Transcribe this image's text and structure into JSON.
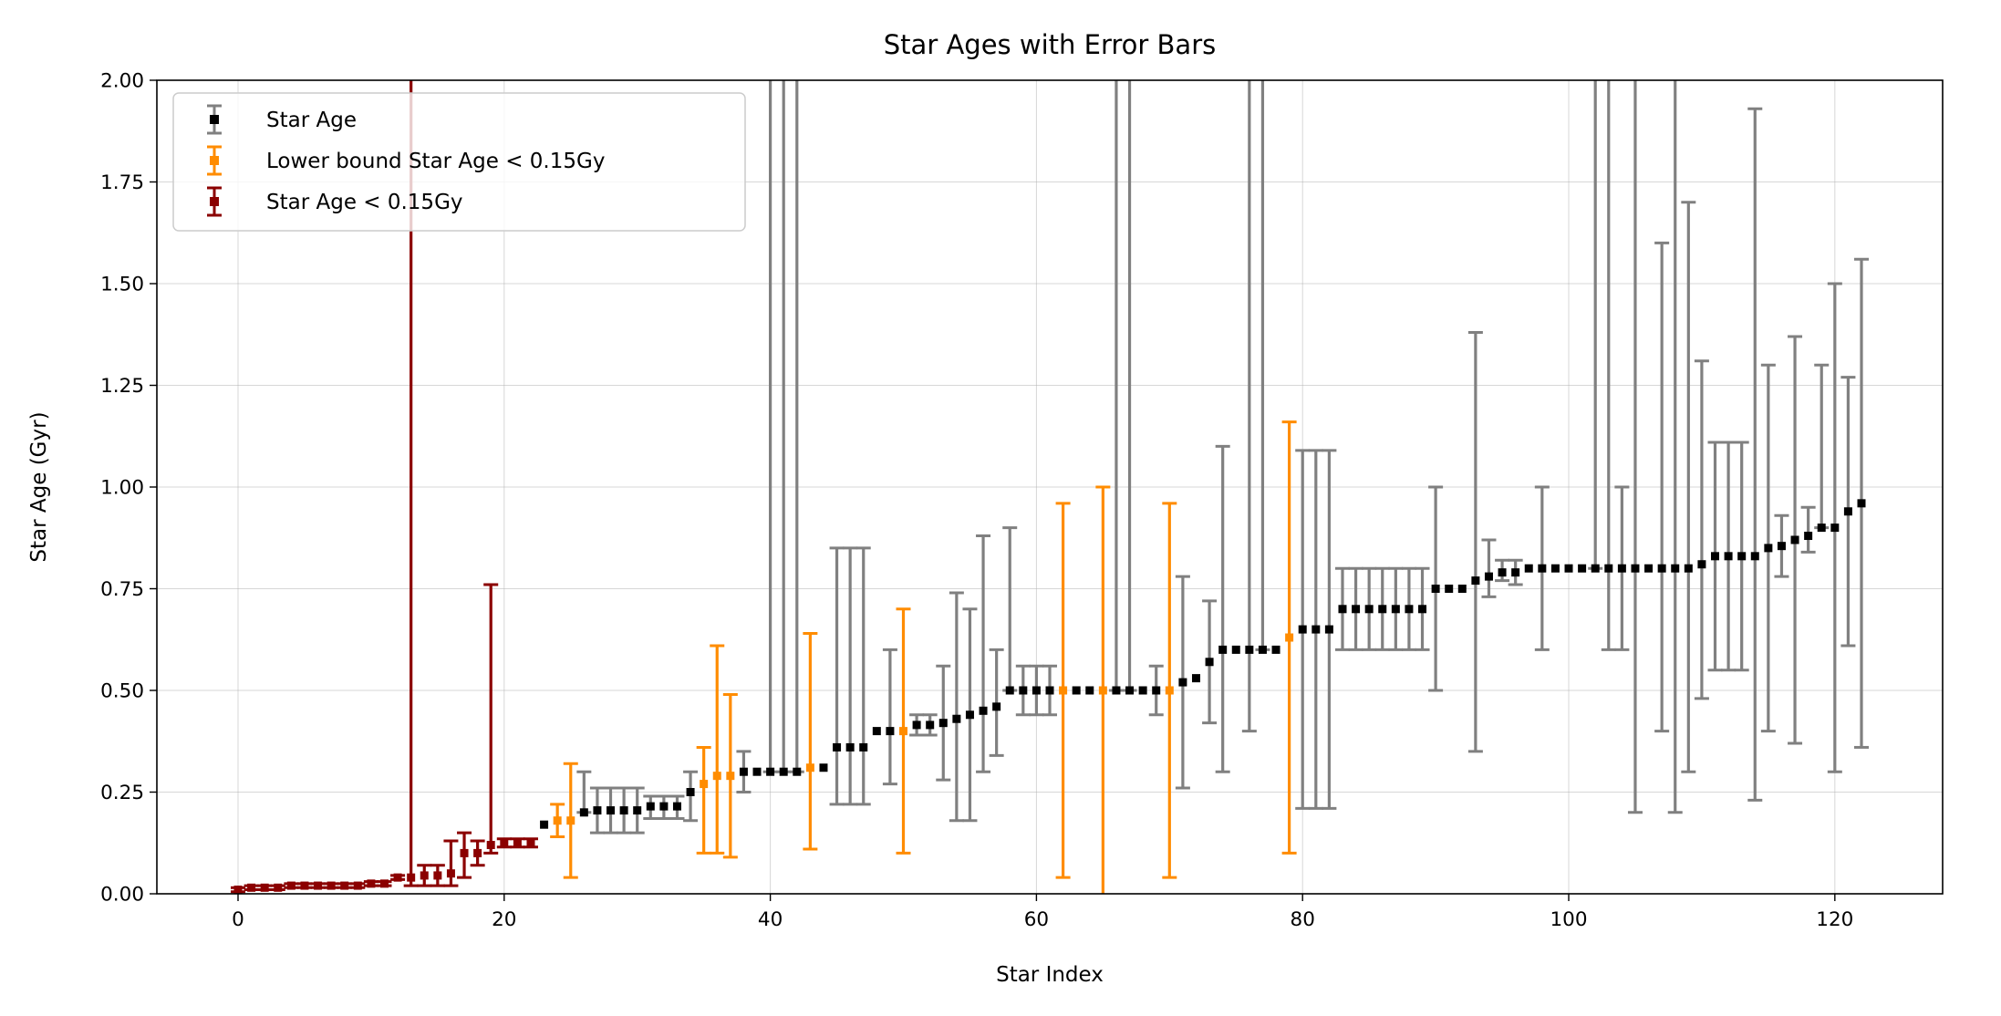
{
  "chart_data": {
    "type": "scatter",
    "title": "Star Ages with Error Bars",
    "xlabel": "Star Index",
    "ylabel": "Star Age (Gyr)",
    "xlim": [
      -6.1,
      128.1
    ],
    "ylim": [
      0,
      2.0
    ],
    "xticks": [
      0,
      20,
      40,
      60,
      80,
      100,
      120
    ],
    "xtick_labels": [
      "0",
      "20",
      "40",
      "60",
      "80",
      "100",
      "120"
    ],
    "yticks": [
      0,
      0.25,
      0.5,
      0.75,
      1.0,
      1.25,
      1.5,
      1.75,
      2.0
    ],
    "ytick_labels": [
      "0.00",
      "0.25",
      "0.50",
      "0.75",
      "1.00",
      "1.25",
      "1.50",
      "1.75",
      "2.00"
    ],
    "grid": true,
    "legend_position": "top-left",
    "colors": {
      "gray": "#808080",
      "orange": "#ff8c00",
      "darkred": "#8b0000",
      "marker": "#000000"
    },
    "series": [
      {
        "name": "Star Age",
        "marker_color": "#000000",
        "errorbar_color": "#808080",
        "x": [
          23,
          26,
          27,
          28,
          29,
          30,
          31,
          32,
          33,
          34,
          38,
          39,
          40,
          41,
          42,
          44,
          45,
          46,
          47,
          48,
          49,
          51,
          52,
          53,
          54,
          55,
          56,
          57,
          58,
          59,
          60,
          61,
          63,
          64,
          66,
          67,
          68,
          69,
          71,
          72,
          73,
          74,
          75,
          76,
          77,
          78,
          80,
          81,
          82,
          83,
          84,
          85,
          86,
          87,
          88,
          89,
          90,
          91,
          92,
          93,
          94,
          95,
          96,
          97,
          98,
          99,
          100,
          101,
          102,
          103,
          104,
          105,
          106,
          107,
          108,
          109,
          110,
          111,
          112,
          113,
          114,
          115,
          116,
          117,
          118,
          119,
          120,
          121,
          122
        ],
        "y": [
          0.17,
          0.2,
          0.205,
          0.205,
          0.205,
          0.205,
          0.215,
          0.215,
          0.215,
          0.25,
          0.3,
          0.3,
          0.3,
          0.3,
          0.3,
          0.31,
          0.36,
          0.36,
          0.36,
          0.4,
          0.4,
          0.415,
          0.415,
          0.42,
          0.43,
          0.44,
          0.45,
          0.46,
          0.5,
          0.5,
          0.5,
          0.5,
          0.5,
          0.5,
          0.5,
          0.5,
          0.5,
          0.5,
          0.52,
          0.53,
          0.57,
          0.6,
          0.6,
          0.6,
          0.6,
          0.6,
          0.65,
          0.65,
          0.65,
          0.7,
          0.7,
          0.7,
          0.7,
          0.7,
          0.7,
          0.7,
          0.75,
          0.75,
          0.75,
          0.77,
          0.78,
          0.79,
          0.79,
          0.8,
          0.8,
          0.8,
          0.8,
          0.8,
          0.8,
          0.8,
          0.8,
          0.8,
          0.8,
          0.8,
          0.8,
          0.8,
          0.81,
          0.83,
          0.83,
          0.83,
          0.83,
          0.85,
          0.855,
          0.87,
          0.88,
          0.9,
          0.9,
          0.94,
          0.96
        ],
        "y_lower": [
          0.17,
          0.2,
          0.15,
          0.15,
          0.15,
          0.15,
          0.185,
          0.185,
          0.185,
          0.18,
          0.25,
          0.3,
          0.3,
          0.3,
          0.3,
          0.31,
          0.22,
          0.22,
          0.22,
          0.4,
          0.27,
          0.39,
          0.39,
          0.28,
          0.18,
          0.18,
          0.3,
          0.34,
          0.5,
          0.44,
          0.44,
          0.44,
          0.5,
          0.5,
          0.5,
          0.5,
          0.5,
          0.44,
          0.26,
          0.53,
          0.42,
          0.3,
          0.6,
          0.4,
          0.6,
          0.6,
          0.21,
          0.21,
          0.21,
          0.6,
          0.6,
          0.6,
          0.6,
          0.6,
          0.6,
          0.6,
          0.5,
          0.75,
          0.75,
          0.35,
          0.73,
          0.77,
          0.76,
          0.8,
          0.6,
          0.8,
          0.8,
          0.8,
          0.8,
          0.6,
          0.6,
          0.2,
          0.8,
          0.4,
          0.2,
          0.3,
          0.48,
          0.55,
          0.55,
          0.55,
          0.23,
          0.4,
          0.78,
          0.37,
          0.84,
          0.9,
          0.3,
          0.61,
          0.36
        ],
        "y_upper": [
          0.17,
          0.3,
          0.26,
          0.26,
          0.26,
          0.26,
          0.24,
          0.24,
          0.24,
          0.3,
          0.35,
          0.3,
          2.3,
          2.3,
          2.3,
          0.31,
          0.85,
          0.85,
          0.85,
          0.4,
          0.6,
          0.44,
          0.44,
          0.56,
          0.74,
          0.7,
          0.88,
          0.6,
          0.9,
          0.56,
          0.56,
          0.56,
          0.5,
          0.5,
          2.3,
          2.3,
          0.5,
          0.56,
          0.78,
          0.53,
          0.72,
          1.1,
          0.6,
          2.3,
          2.3,
          0.6,
          1.09,
          1.09,
          1.09,
          0.8,
          0.8,
          0.8,
          0.8,
          0.8,
          0.8,
          0.8,
          1.0,
          0.75,
          0.75,
          1.38,
          0.87,
          0.82,
          0.82,
          0.8,
          1.0,
          0.8,
          0.8,
          0.8,
          2.3,
          2.3,
          1.0,
          2.3,
          0.8,
          1.6,
          2.3,
          1.7,
          1.31,
          1.11,
          1.11,
          1.11,
          1.93,
          1.3,
          0.93,
          1.37,
          0.95,
          1.3,
          1.5,
          1.27,
          1.56
        ]
      },
      {
        "name": "Lower bound Star Age < 0.15Gy",
        "marker_color": "#ff8c00",
        "errorbar_color": "#ff8c00",
        "x": [
          24,
          25,
          35,
          36,
          37,
          43,
          50,
          62,
          65,
          70,
          79
        ],
        "y": [
          0.18,
          0.18,
          0.27,
          0.29,
          0.29,
          0.31,
          0.4,
          0.5,
          0.5,
          0.5,
          0.63
        ],
        "y_lower": [
          0.14,
          0.04,
          0.1,
          0.1,
          0.09,
          0.11,
          0.1,
          0.04,
          -0.05,
          0.04,
          0.1
        ],
        "y_upper": [
          0.22,
          0.32,
          0.36,
          0.61,
          0.49,
          0.64,
          0.7,
          0.96,
          1.0,
          0.96,
          1.16
        ]
      },
      {
        "name": "Star Age < 0.15Gy",
        "marker_color": "#8b0000",
        "errorbar_color": "#8b0000",
        "x": [
          0,
          1,
          2,
          3,
          4,
          5,
          6,
          7,
          8,
          9,
          10,
          11,
          12,
          13,
          14,
          15,
          16,
          17,
          18,
          19,
          20,
          21,
          22
        ],
        "y": [
          0.01,
          0.015,
          0.015,
          0.015,
          0.02,
          0.02,
          0.02,
          0.02,
          0.02,
          0.02,
          0.025,
          0.025,
          0.04,
          0.04,
          0.045,
          0.045,
          0.05,
          0.1,
          0.1,
          0.12,
          0.125,
          0.125,
          0.125
        ],
        "y_lower": [
          0.005,
          0.01,
          0.01,
          0.01,
          0.015,
          0.015,
          0.015,
          0.015,
          0.015,
          0.015,
          0.02,
          0.02,
          0.035,
          0.02,
          0.02,
          0.02,
          0.02,
          0.04,
          0.07,
          0.1,
          0.115,
          0.115,
          0.115
        ],
        "y_upper": [
          0.015,
          0.02,
          0.02,
          0.02,
          0.025,
          0.025,
          0.025,
          0.025,
          0.025,
          0.025,
          0.03,
          0.03,
          0.045,
          2.3,
          0.07,
          0.07,
          0.13,
          0.15,
          0.13,
          0.76,
          0.135,
          0.135,
          0.135
        ]
      }
    ]
  }
}
